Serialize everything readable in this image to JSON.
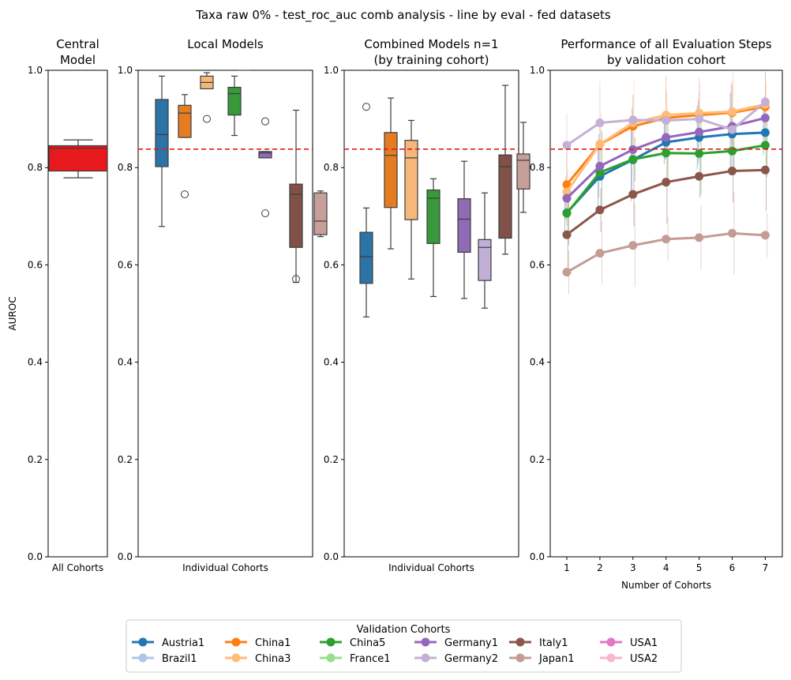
{
  "figure": {
    "suptitle": "Taxa raw 0% - test_roc_auc comb analysis - line by eval - fed datasets"
  },
  "chart_data": [
    {
      "type": "box",
      "title_lines": [
        "Central",
        "Model"
      ],
      "xlabel": "All Cohorts",
      "ylabel": "AUROC",
      "ylim": [
        0,
        1
      ],
      "yticks": [
        "0.0",
        "0.2",
        "0.4",
        "0.6",
        "0.8",
        "1.0"
      ],
      "boxes": [
        {
          "color": "#e8191c",
          "q1": 0.793,
          "median": 0.84,
          "q3": 0.845,
          "whislo": 0.779,
          "whishi": 0.857,
          "fliers": []
        }
      ]
    },
    {
      "type": "box",
      "title_lines": [
        "Local Models"
      ],
      "xlabel": "Individual Cohorts",
      "ylim": [
        0,
        1
      ],
      "yticks": [
        "0.0",
        "0.2",
        "0.4",
        "0.6",
        "0.8",
        "1.0"
      ],
      "reference_line": 0.838,
      "boxes": [
        {
          "color": "#2c73a6",
          "q1": 0.802,
          "median": 0.868,
          "q3": 0.94,
          "whislo": 0.679,
          "whishi": 0.988,
          "fliers": []
        },
        {
          "color": "#e67c22",
          "q1": 0.862,
          "median": 0.912,
          "q3": 0.928,
          "whislo": 0.862,
          "whishi": 0.95,
          "fliers": [
            0.745
          ]
        },
        {
          "color": "#f5b87a",
          "q1": 0.962,
          "median": 0.975,
          "q3": 0.988,
          "whislo": 0.962,
          "whishi": 0.995,
          "fliers": [
            0.9
          ]
        },
        {
          "color": "#37993a",
          "q1": 0.908,
          "median": 0.952,
          "q3": 0.965,
          "whislo": 0.866,
          "whishi": 0.988,
          "fliers": []
        },
        {
          "color": "#8f6bb5",
          "q1": 0.82,
          "median": 0.83,
          "q3": 0.833,
          "whislo": 0.82,
          "whishi": 0.833,
          "fliers": [
            0.895,
            0.706
          ]
        },
        {
          "color": "#815149",
          "q1": 0.636,
          "median": 0.745,
          "q3": 0.766,
          "whislo": 0.564,
          "whishi": 0.918,
          "fliers": [
            0.571
          ]
        },
        {
          "color": "#c69f99",
          "q1": 0.662,
          "median": 0.69,
          "q3": 0.748,
          "whislo": 0.658,
          "whishi": 0.752,
          "fliers": []
        }
      ],
      "annotations": [
        {
          "type": "flier_at_top",
          "value": 1.0
        }
      ]
    },
    {
      "type": "box",
      "title_lines": [
        "Combined Models n=1",
        "(by training cohort)"
      ],
      "xlabel": "Individual Cohorts",
      "ylim": [
        0,
        1
      ],
      "yticks": [
        "0.0",
        "0.2",
        "0.4",
        "0.6",
        "0.8",
        "1.0"
      ],
      "reference_line": 0.838,
      "boxes": [
        {
          "color": "#2c73a6",
          "q1": 0.562,
          "median": 0.617,
          "q3": 0.667,
          "whislo": 0.493,
          "whishi": 0.717,
          "fliers": [
            0.925
          ]
        },
        {
          "color": "#e67c22",
          "q1": 0.718,
          "median": 0.825,
          "q3": 0.872,
          "whislo": 0.633,
          "whishi": 0.943,
          "fliers": []
        },
        {
          "color": "#f5b87a",
          "q1": 0.693,
          "median": 0.82,
          "q3": 0.856,
          "whislo": 0.571,
          "whishi": 0.897,
          "fliers": []
        },
        {
          "color": "#37993a",
          "q1": 0.644,
          "median": 0.737,
          "q3": 0.754,
          "whislo": 0.535,
          "whishi": 0.777,
          "fliers": []
        },
        {
          "color": "#8f6bb5",
          "q1": 0.626,
          "median": 0.694,
          "q3": 0.736,
          "whislo": 0.531,
          "whishi": 0.813,
          "fliers": []
        },
        {
          "color": "#c1afd6",
          "q1": 0.568,
          "median": 0.636,
          "q3": 0.652,
          "whislo": 0.511,
          "whishi": 0.748,
          "fliers": []
        },
        {
          "color": "#815149",
          "q1": 0.655,
          "median": 0.802,
          "q3": 0.826,
          "whislo": 0.622,
          "whishi": 0.969,
          "fliers": []
        },
        {
          "color": "#c69f99",
          "q1": 0.756,
          "median": 0.815,
          "q3": 0.828,
          "whislo": 0.708,
          "whishi": 0.893,
          "fliers": []
        }
      ]
    },
    {
      "type": "line",
      "title_lines": [
        "Performance of all Evaluation Steps",
        "by validation cohort"
      ],
      "xlabel": "Number of Cohorts",
      "x": [
        1,
        2,
        3,
        4,
        5,
        6,
        7
      ],
      "xticks": [
        "1",
        "2",
        "3",
        "4",
        "5",
        "6",
        "7"
      ],
      "ylim": [
        0,
        1
      ],
      "yticks": [
        "0.0",
        "0.2",
        "0.4",
        "0.6",
        "0.8",
        "1.0"
      ],
      "reference_line": 0.838,
      "series": [
        {
          "name": "Austria1",
          "color": "#1f77b4",
          "values": [
            0.707,
            0.782,
            0.816,
            0.852,
            0.862,
            0.869,
            0.872
          ]
        },
        {
          "name": "Brazil1",
          "color": "#aec7e8",
          "values": [
            null,
            null,
            null,
            null,
            null,
            null,
            null
          ]
        },
        {
          "name": "China1",
          "color": "#ff7f0e",
          "values": [
            0.765,
            0.848,
            0.885,
            0.902,
            0.908,
            0.913,
            0.925
          ]
        },
        {
          "name": "China3",
          "color": "#ffbb78",
          "values": [
            0.75,
            0.848,
            0.892,
            0.908,
            0.912,
            0.915,
            0.93
          ]
        },
        {
          "name": "China5",
          "color": "#2ca02c",
          "values": [
            0.706,
            0.79,
            0.817,
            0.83,
            0.829,
            0.834,
            0.846
          ]
        },
        {
          "name": "France1",
          "color": "#98df8a",
          "values": [
            null,
            null,
            null,
            null,
            null,
            null,
            null
          ]
        },
        {
          "name": "Germany1",
          "color": "#9467bd",
          "values": [
            0.737,
            0.803,
            0.837,
            0.862,
            0.873,
            0.885,
            0.902
          ]
        },
        {
          "name": "Germany2",
          "color": "#c5b0d5",
          "values": [
            0.846,
            0.892,
            0.898,
            0.897,
            0.9,
            0.878,
            0.935
          ]
        },
        {
          "name": "Italy1",
          "color": "#8c564b",
          "values": [
            0.662,
            0.713,
            0.745,
            0.77,
            0.782,
            0.793,
            0.795
          ]
        },
        {
          "name": "Japan1",
          "color": "#c49c94",
          "values": [
            0.585,
            0.624,
            0.64,
            0.653,
            0.656,
            0.665,
            0.661
          ]
        },
        {
          "name": "USA1",
          "color": "#e377c2",
          "values": [
            null,
            null,
            null,
            null,
            null,
            null,
            null
          ]
        },
        {
          "name": "USA2",
          "color": "#f7b6d2",
          "values": [
            null,
            null,
            null,
            null,
            null,
            null,
            null
          ]
        }
      ]
    }
  ],
  "legend": {
    "title": "Validation Cohorts",
    "items": [
      {
        "label": "Austria1",
        "color": "#1f77b4"
      },
      {
        "label": "Brazil1",
        "color": "#aec7e8"
      },
      {
        "label": "China1",
        "color": "#ff7f0e"
      },
      {
        "label": "China3",
        "color": "#ffbb78"
      },
      {
        "label": "China5",
        "color": "#2ca02c"
      },
      {
        "label": "France1",
        "color": "#98df8a"
      },
      {
        "label": "Germany1",
        "color": "#9467bd"
      },
      {
        "label": "Germany2",
        "color": "#c5b0d5"
      },
      {
        "label": "Italy1",
        "color": "#8c564b"
      },
      {
        "label": "Japan1",
        "color": "#c49c94"
      },
      {
        "label": "USA1",
        "color": "#e377c2"
      },
      {
        "label": "USA2",
        "color": "#f7b6d2"
      }
    ]
  },
  "reference_line_color": "#e31a1c"
}
